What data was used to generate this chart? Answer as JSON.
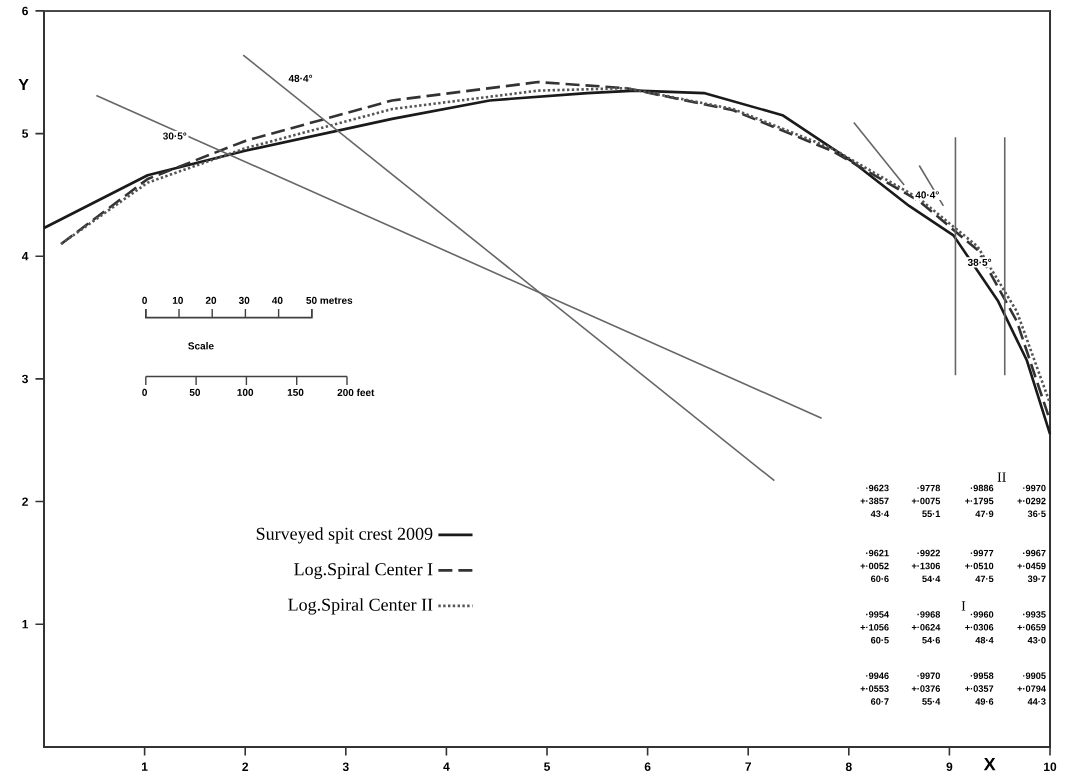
{
  "chart_data": {
    "type": "line",
    "xlabel": "X",
    "ylabel": "Y",
    "xlim": [
      0,
      10
    ],
    "ylim": [
      0,
      6
    ],
    "xticks": [
      1,
      2,
      3,
      4,
      5,
      6,
      7,
      8,
      9,
      10
    ],
    "yticks": [
      1,
      2,
      3,
      4,
      5,
      6
    ],
    "grid": false,
    "marker": "none",
    "legend": "bottom left",
    "series": [
      {
        "name": "Surveyed spit crest 2009",
        "color": "#1a1a1a",
        "line_style": "solid",
        "x": [
          0,
          1.03,
          2.0,
          3.46,
          4.43,
          5.4,
          5.88,
          6.56,
          7.34,
          8.02,
          8.6,
          9.04,
          9.48,
          9.77,
          10
        ],
        "values": [
          4.23,
          4.66,
          4.86,
          5.12,
          5.27,
          5.33,
          5.35,
          5.33,
          5.15,
          4.78,
          4.41,
          4.17,
          3.64,
          3.15,
          2.55
        ]
      },
      {
        "name": "Log.Spiral  Center I",
        "color": "#333333",
        "line_style": "dashed",
        "x": [
          0.17,
          1.03,
          2.0,
          3.46,
          4.91,
          5.79,
          6.85,
          7.83,
          8.7,
          9.28,
          9.67,
          10
        ],
        "values": [
          4.1,
          4.63,
          4.94,
          5.27,
          5.42,
          5.37,
          5.19,
          4.86,
          4.45,
          4.05,
          3.47,
          2.66
        ]
      },
      {
        "name": "Log.Spiral Center II",
        "color": "#555555",
        "line_style": "dotted",
        "x": [
          0.17,
          1.03,
          2.0,
          3.46,
          4.91,
          5.79,
          6.85,
          7.83,
          8.7,
          9.28,
          9.67,
          10
        ],
        "values": [
          4.1,
          4.6,
          4.88,
          5.2,
          5.35,
          5.37,
          5.2,
          4.88,
          4.47,
          4.08,
          3.55,
          2.8
        ]
      },
      {
        "color": "#666666",
        "line_style": "solid",
        "x": [
          0.52,
          7.73
        ],
        "values": [
          5.31,
          2.68
        ]
      },
      {
        "color": "#666666",
        "line_style": "solid",
        "x": [
          1.98,
          7.26
        ],
        "values": [
          5.64,
          2.17
        ]
      },
      {
        "color": "#666666",
        "line_style": "solid",
        "x": [
          9.06,
          9.06
        ],
        "values": [
          4.97,
          3.03
        ]
      },
      {
        "color": "#666666",
        "line_style": "solid",
        "x": [
          9.55,
          9.55
        ],
        "values": [
          4.97,
          3.03
        ]
      },
      {
        "color": "#666666",
        "line_style": "solid",
        "x": [
          8.05,
          8.55
        ],
        "values": [
          5.09,
          4.58
        ]
      },
      {
        "color": "#666666",
        "line_style": "solid",
        "x": [
          8.7,
          8.94
        ],
        "values": [
          4.74,
          4.41
        ]
      }
    ],
    "annotations": [
      "30·5°",
      "48·4°",
      "40·4°",
      "38·5°",
      "0",
      "10",
      "20",
      "30",
      "40",
      "50 metres",
      "Scale",
      "0",
      "50",
      "100",
      "150",
      "200 feet",
      "II",
      "I",
      "·9623",
      "+·3857",
      "43·4",
      "·9778",
      "+·0075",
      "55·1",
      "·9886",
      "+·1795",
      "47·9",
      "·9970",
      "+·0292",
      "36·5",
      "·9621",
      "+·0052",
      "60·6",
      "·9922",
      "+·1306",
      "54·4",
      "·9977",
      "+·0510",
      "47·5",
      "·9967",
      "+·0459",
      "39·7",
      "·9954",
      "+·1056",
      "60·5",
      "·9968",
      "+·0624",
      "54·6",
      "·9960",
      "+·0306",
      "48·4",
      "·9935",
      "+·0659",
      "43·0",
      "·9946",
      "+·0553",
      "60·7",
      "·9970",
      "+·0376",
      "55·4",
      "·9958",
      "+·0357",
      "49·6",
      "·9905",
      "+·0794",
      "44·3"
    ]
  }
}
